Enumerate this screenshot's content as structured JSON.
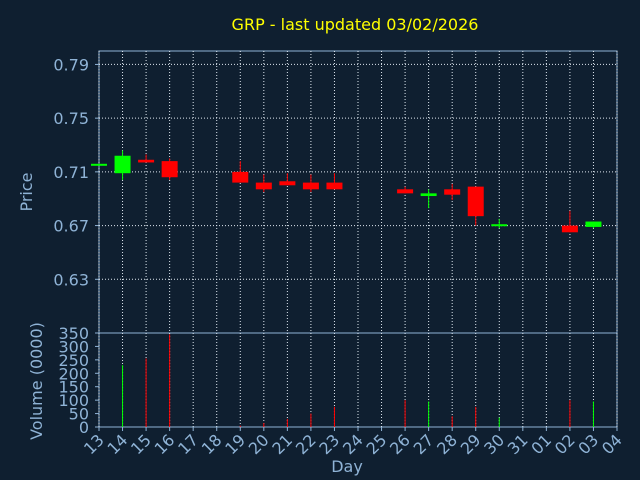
{
  "chart_data": {
    "type": "candlestick",
    "title": "GRP - last updated 03/02/2026",
    "x_label": "Day",
    "y_label": "Price",
    "categories": [
      "13",
      "14",
      "15",
      "16",
      "17",
      "18",
      "19",
      "20",
      "21",
      "22",
      "23",
      "24",
      "25",
      "26",
      "27",
      "28",
      "29",
      "30",
      "31",
      "01",
      "02",
      "03",
      "04"
    ],
    "open": [
      0.715,
      0.709,
      0.719,
      0.718,
      null,
      null,
      0.71,
      0.702,
      0.703,
      0.702,
      0.702,
      null,
      null,
      0.697,
      0.692,
      0.697,
      0.699,
      0.67,
      null,
      null,
      0.67,
      0.669,
      null
    ],
    "high": [
      0.716,
      0.726,
      0.723,
      0.72,
      null,
      null,
      0.718,
      0.708,
      0.709,
      0.708,
      0.709,
      null,
      null,
      0.699,
      0.697,
      0.701,
      0.699,
      0.675,
      null,
      null,
      0.681,
      0.673,
      null
    ],
    "low": [
      0.715,
      0.704,
      0.717,
      0.704,
      null,
      null,
      0.702,
      0.695,
      0.7,
      0.695,
      0.697,
      null,
      null,
      0.694,
      0.683,
      0.689,
      0.67,
      0.668,
      null,
      null,
      0.665,
      0.668,
      null
    ],
    "close": [
      0.716,
      0.722,
      0.717,
      0.706,
      null,
      null,
      0.702,
      0.697,
      0.7,
      0.697,
      0.697,
      null,
      null,
      0.694,
      0.694,
      0.693,
      0.677,
      0.671,
      null,
      null,
      0.665,
      0.673,
      null
    ],
    "ylim": [
      0.59,
      0.8
    ],
    "yticks": [
      0.63,
      0.67,
      0.71,
      0.75,
      0.79
    ],
    "up_color": "#00ff00",
    "down_color": "#ff0000",
    "grid": true,
    "volume": {
      "y_label": "Volume (0000)",
      "values": [
        0,
        230,
        255,
        345,
        null,
        null,
        5,
        15,
        30,
        50,
        75,
        null,
        null,
        100,
        95,
        40,
        75,
        35,
        null,
        null,
        100,
        95,
        null
      ],
      "ylim": [
        0,
        350
      ],
      "yticks": [
        0,
        50,
        100,
        150,
        200,
        250,
        300,
        350
      ]
    }
  }
}
